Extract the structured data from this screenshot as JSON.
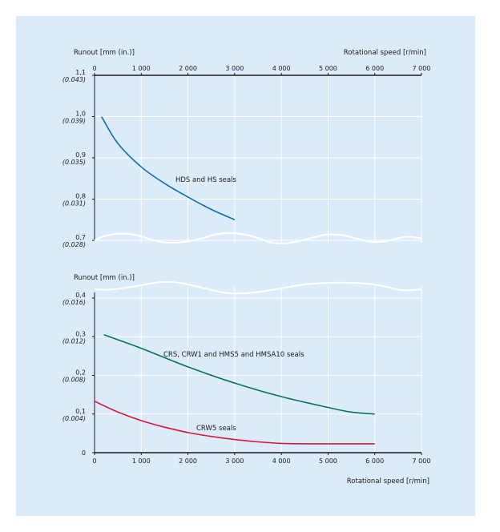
{
  "colors": {
    "panel_bg": "#dcebf9",
    "grid": "#ffffff",
    "axis": "#1a1a1a",
    "hds_hs": "#0a6fae",
    "crs_group": "#00755a",
    "crw5": "#d6173a"
  },
  "chart_data": [
    {
      "type": "line",
      "title": "",
      "ylabel": "Runout [mm (in.)]",
      "xlabel": "Rotational speed [r/min]",
      "xlim": [
        0,
        7000
      ],
      "ylim": [
        0.7,
        1.1
      ],
      "x_ticks": [
        "0",
        "1 000",
        "2 000",
        "3 000",
        "4 000",
        "5 000",
        "6 000",
        "7 000"
      ],
      "y_ticks": [
        {
          "mm": "0,7",
          "in": "(0.028)",
          "v": 0.7
        },
        {
          "mm": "0,8",
          "in": "(0.031)",
          "v": 0.8
        },
        {
          "mm": "0,9",
          "in": "(0.035)",
          "v": 0.9
        },
        {
          "mm": "1,0",
          "in": "(0.039)",
          "v": 1.0
        },
        {
          "mm": "1,1",
          "in": "(0.043)",
          "v": 1.1
        }
      ],
      "grid": true,
      "axis_break": "bottom",
      "series": [
        {
          "name": "HDS and HS seals",
          "color": "#0a6fae",
          "x": [
            150,
            500,
            1000,
            1500,
            2000,
            2500,
            3000
          ],
          "y": [
            1.0,
            0.935,
            0.878,
            0.838,
            0.805,
            0.775,
            0.75
          ]
        }
      ]
    },
    {
      "type": "line",
      "title": "",
      "ylabel": "Runout [mm (in.)]",
      "xlabel": "Rotational speed [r/min]",
      "xlim": [
        0,
        7000
      ],
      "ylim": [
        0,
        0.4
      ],
      "x_ticks": [
        "0",
        "1 000",
        "2 000",
        "3 000",
        "4 000",
        "5 000",
        "6 000",
        "7 000"
      ],
      "y_ticks": [
        {
          "mm": "0",
          "in": "",
          "v": 0
        },
        {
          "mm": "0,1",
          "in": "(0.004)",
          "v": 0.1
        },
        {
          "mm": "0,2",
          "in": "(0.008)",
          "v": 0.2
        },
        {
          "mm": "0,3",
          "in": "(0.012)",
          "v": 0.3
        },
        {
          "mm": "0,4",
          "in": "(0.016)",
          "v": 0.4
        }
      ],
      "grid": true,
      "axis_break": "top",
      "series": [
        {
          "name": "CRS, CRW1 and HMS5 and HMSA10 seals",
          "color": "#00755a",
          "x": [
            200,
            1000,
            2000,
            3000,
            4000,
            5000,
            5500,
            6000
          ],
          "y": [
            0.305,
            0.27,
            0.222,
            0.18,
            0.145,
            0.117,
            0.105,
            0.1
          ]
        },
        {
          "name": "CRW5 seals",
          "color": "#d6173a",
          "x": [
            0,
            500,
            1000,
            1500,
            2000,
            2500,
            3000,
            3500,
            4000,
            4500,
            5000,
            6000
          ],
          "y": [
            0.133,
            0.105,
            0.083,
            0.066,
            0.052,
            0.042,
            0.034,
            0.028,
            0.024,
            0.023,
            0.023,
            0.023
          ]
        }
      ]
    }
  ]
}
